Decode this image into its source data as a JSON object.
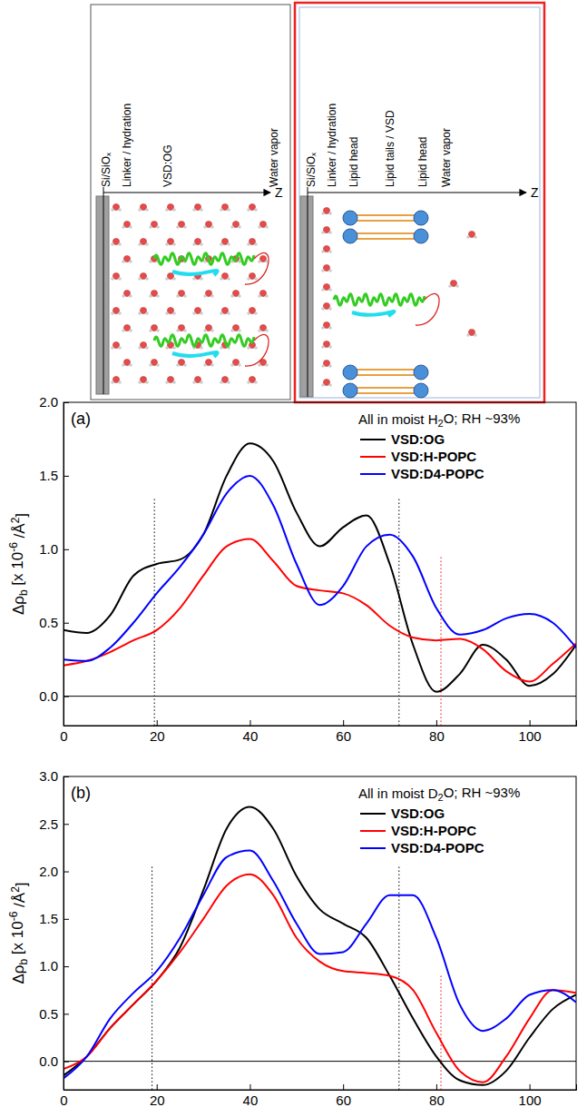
{
  "diagram": {
    "left_panel": {
      "labels": [
        [
          "Si/SiO",
          {
            "sub": "x"
          }
        ],
        [
          "Linker / hydration"
        ],
        [
          "VSD:OG"
        ],
        [
          "Water vapor"
        ]
      ],
      "axis_label": "Z"
    },
    "right_panel": {
      "labels": [
        [
          "Si/SiO",
          {
            "sub": "x"
          }
        ],
        [
          "Linker / hydration"
        ],
        [
          "Lipid head"
        ],
        [
          "Lipid tails / VSD"
        ],
        [
          "Lipid head"
        ],
        [
          "Water vapor"
        ]
      ],
      "axis_label": "Z"
    }
  },
  "chart_data": [
    {
      "type": "line",
      "panel": "(a)",
      "legend_title": [
        "All in moist H",
        {
          "sub": "2"
        },
        "O; RH ~93%"
      ],
      "legend": "top-right",
      "y_label": [
        "Δρ",
        {
          "sub": "b"
        },
        " [x 10",
        {
          "sup": "-6"
        },
        " /Å",
        {
          "sup": "2"
        },
        "]"
      ],
      "xlim": [
        0,
        110
      ],
      "xticks": [
        0,
        20,
        40,
        60,
        80,
        100
      ],
      "ylim": [
        -0.2,
        2.0
      ],
      "yticks": [
        {
          "value": 0,
          "label": "0.0"
        },
        {
          "value": 0.5,
          "label": "0.5"
        },
        {
          "value": 1,
          "label": "1.0"
        },
        {
          "value": 1.5,
          "label": "1.5"
        },
        {
          "value": 2,
          "label": "2.0"
        }
      ],
      "x": [
        0,
        5,
        10,
        15,
        20,
        25,
        30,
        35,
        40,
        45,
        50,
        55,
        60,
        65,
        70,
        75,
        80,
        85,
        90,
        95,
        100,
        105,
        110
      ],
      "series": [
        {
          "name": "VSD:OG",
          "color": "#000000",
          "values": [
            0.45,
            0.43,
            0.55,
            0.82,
            0.9,
            0.93,
            1.1,
            1.5,
            1.72,
            1.6,
            1.25,
            1.02,
            1.15,
            1.23,
            0.9,
            0.35,
            0.03,
            0.15,
            0.35,
            0.25,
            0.07,
            0.15,
            0.35
          ]
        },
        {
          "name": "VSD:H-POPC",
          "color": "#ff0000",
          "values": [
            0.21,
            0.24,
            0.3,
            0.38,
            0.45,
            0.6,
            0.82,
            1.02,
            1.07,
            0.92,
            0.75,
            0.72,
            0.7,
            0.62,
            0.48,
            0.4,
            0.38,
            0.39,
            0.32,
            0.17,
            0.1,
            0.22,
            0.36
          ]
        },
        {
          "name": "VSD:D4-POPC",
          "color": "#0000ff",
          "values": [
            0.25,
            0.24,
            0.33,
            0.5,
            0.7,
            0.88,
            1.1,
            1.38,
            1.5,
            1.3,
            0.9,
            0.62,
            0.75,
            1.02,
            1.1,
            0.95,
            0.6,
            0.42,
            0.45,
            0.53,
            0.56,
            0.5,
            0.33
          ]
        }
      ],
      "reference_lines": [
        {
          "y": 0,
          "color": "#000000",
          "line_style": "solid"
        },
        {
          "x": 19.5,
          "to": 1.35,
          "color": "#000000",
          "line_style": "dotted"
        },
        {
          "x": 72,
          "to": 1.35,
          "color": "#000000",
          "line_style": "dotted"
        },
        {
          "x": 81,
          "to": 0.95,
          "color": "#ff0000",
          "line_style": "dotted"
        }
      ]
    },
    {
      "type": "line",
      "panel": "(b)",
      "legend_title": [
        "All in moist D",
        {
          "sub": "2"
        },
        "O; RH ~93%"
      ],
      "legend": "top-right",
      "y_label": [
        "Δρ",
        {
          "sub": "b"
        },
        " [x 10",
        {
          "sup": "-6"
        },
        " /Å",
        {
          "sup": "2"
        },
        "]"
      ],
      "xlim": [
        0,
        110
      ],
      "xticks": [
        0,
        20,
        40,
        60,
        80,
        100
      ],
      "ylim": [
        -0.3,
        3.0
      ],
      "yticks": [
        {
          "value": 0,
          "label": "0.0"
        },
        {
          "value": 0.5,
          "label": "0.5"
        },
        {
          "value": 1,
          "label": "1.0"
        },
        {
          "value": 1.5,
          "label": "1.5"
        },
        {
          "value": 2,
          "label": "2.0"
        },
        {
          "value": 2.5,
          "label": "2.5"
        },
        {
          "value": 3,
          "label": "3.0"
        }
      ],
      "x": [
        0,
        5,
        10,
        15,
        20,
        25,
        30,
        35,
        40,
        45,
        50,
        55,
        60,
        65,
        70,
        75,
        80,
        85,
        90,
        95,
        100,
        105,
        110
      ],
      "series": [
        {
          "name": "VSD:OG",
          "color": "#000000",
          "values": [
            -0.15,
            0.05,
            0.35,
            0.6,
            0.85,
            1.2,
            1.8,
            2.45,
            2.68,
            2.45,
            1.95,
            1.6,
            1.45,
            1.3,
            0.9,
            0.45,
            0.05,
            -0.2,
            -0.25,
            -0.1,
            0.25,
            0.55,
            0.7
          ]
        },
        {
          "name": "VSD:H-POPC",
          "color": "#ff0000",
          "values": [
            -0.08,
            0.05,
            0.35,
            0.6,
            0.85,
            1.15,
            1.5,
            1.85,
            1.97,
            1.75,
            1.3,
            1.05,
            0.95,
            0.93,
            0.9,
            0.75,
            0.3,
            -0.1,
            -0.22,
            0.05,
            0.45,
            0.75,
            0.72
          ]
        },
        {
          "name": "VSD:D4-POPC",
          "color": "#0000ff",
          "values": [
            -0.18,
            0.05,
            0.45,
            0.72,
            0.95,
            1.3,
            1.75,
            2.15,
            2.22,
            1.9,
            1.45,
            1.13,
            1.15,
            1.45,
            1.75,
            1.75,
            1.3,
            0.6,
            0.32,
            0.45,
            0.7,
            0.75,
            0.62
          ]
        }
      ],
      "reference_lines": [
        {
          "y": 0,
          "color": "#000000",
          "line_style": "solid"
        },
        {
          "x": 19,
          "to": 2.05,
          "color": "#000000",
          "line_style": "dotted"
        },
        {
          "x": 72,
          "to": 2.05,
          "color": "#000000",
          "line_style": "dotted"
        },
        {
          "x": 81,
          "to": 0.92,
          "color": "#ff0000",
          "line_style": "dotted"
        }
      ]
    }
  ]
}
